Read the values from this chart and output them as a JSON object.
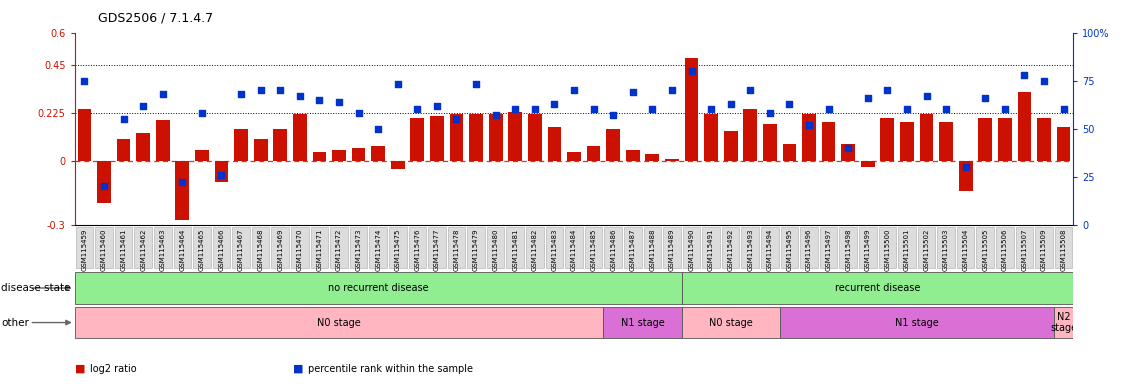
{
  "title": "GDS2506 / 7.1.4.7",
  "samples": [
    "GSM115459",
    "GSM115460",
    "GSM115461",
    "GSM115462",
    "GSM115463",
    "GSM115464",
    "GSM115465",
    "GSM115466",
    "GSM115467",
    "GSM115468",
    "GSM115469",
    "GSM115470",
    "GSM115471",
    "GSM115472",
    "GSM115473",
    "GSM115474",
    "GSM115475",
    "GSM115476",
    "GSM115477",
    "GSM115478",
    "GSM115479",
    "GSM115480",
    "GSM115481",
    "GSM115482",
    "GSM115483",
    "GSM115484",
    "GSM115485",
    "GSM115486",
    "GSM115487",
    "GSM115488",
    "GSM115489",
    "GSM115490",
    "GSM115491",
    "GSM115492",
    "GSM115493",
    "GSM115494",
    "GSM115495",
    "GSM115496",
    "GSM115497",
    "GSM115498",
    "GSM115499",
    "GSM115500",
    "GSM115501",
    "GSM115502",
    "GSM115503",
    "GSM115504",
    "GSM115505",
    "GSM115506",
    "GSM115507",
    "GSM115509",
    "GSM115508"
  ],
  "log2_ratio": [
    0.24,
    -0.2,
    0.1,
    0.13,
    0.19,
    -0.28,
    0.05,
    -0.1,
    0.15,
    0.1,
    0.15,
    0.22,
    0.04,
    0.05,
    0.06,
    0.07,
    -0.04,
    0.2,
    0.21,
    0.22,
    0.22,
    0.22,
    0.23,
    0.22,
    0.16,
    0.04,
    0.07,
    0.15,
    0.05,
    0.03,
    0.01,
    0.48,
    0.22,
    0.14,
    0.24,
    0.17,
    0.08,
    0.22,
    0.18,
    0.08,
    -0.03,
    0.2,
    0.18,
    0.22,
    0.18,
    -0.14,
    0.2,
    0.2,
    0.32,
    0.2,
    0.16
  ],
  "percentile": [
    75,
    20,
    55,
    62,
    68,
    22,
    58,
    26,
    68,
    70,
    70,
    67,
    65,
    64,
    58,
    50,
    73,
    60,
    62,
    55,
    73,
    57,
    60,
    60,
    63,
    70,
    60,
    57,
    69,
    60,
    70,
    80,
    60,
    63,
    70,
    58,
    63,
    52,
    60,
    40,
    66,
    70,
    60,
    67,
    60,
    30,
    66,
    60,
    78,
    75,
    60
  ],
  "bar_color": "#CC1100",
  "dot_color": "#0033CC",
  "ylim_left": [
    -0.3,
    0.6
  ],
  "ylim_right": [
    0,
    100
  ],
  "yticks_left": [
    -0.3,
    0.0,
    0.225,
    0.45,
    0.6
  ],
  "ytick_labels_left": [
    "-0.3",
    "0",
    "0.225",
    "0.45",
    "0.6"
  ],
  "yticks_right": [
    0,
    25,
    50,
    75,
    100
  ],
  "ytick_labels_right": [
    "0",
    "25",
    "50",
    "75",
    "100%"
  ],
  "hlines": [
    0.225,
    0.45
  ],
  "zero_line": 0.0,
  "disease_regions": [
    {
      "label": "no recurrent disease",
      "start": 0,
      "end": 31
    },
    {
      "label": "recurrent disease",
      "start": 31,
      "end": 51
    }
  ],
  "stage_regions": [
    {
      "label": "N0 stage",
      "start": 0,
      "end": 27
    },
    {
      "label": "N1 stage",
      "start": 27,
      "end": 31
    },
    {
      "label": "N0 stage",
      "start": 31,
      "end": 36
    },
    {
      "label": "N1 stage",
      "start": 36,
      "end": 50
    },
    {
      "label": "N2\nstage",
      "start": 50,
      "end": 51
    }
  ],
  "disease_color": "#90EE90",
  "n0_color": "#FFB6C1",
  "n1_color": "#DA70D6",
  "legend_items": [
    {
      "label": "log2 ratio",
      "color": "#CC1100"
    },
    {
      "label": "percentile rank within the sample",
      "color": "#0033CC"
    }
  ]
}
